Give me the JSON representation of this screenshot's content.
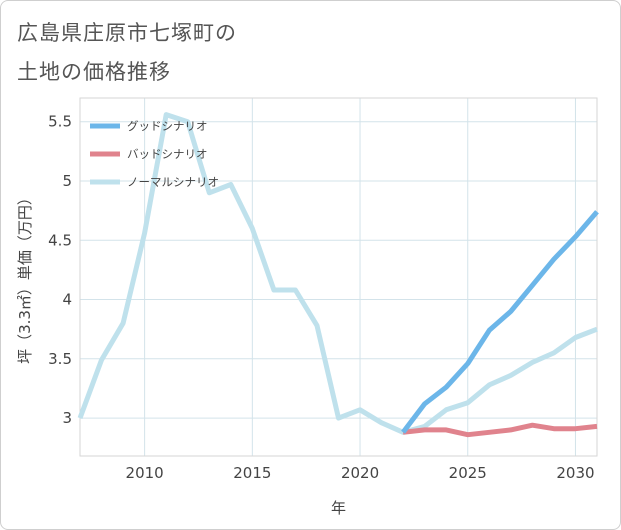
{
  "title_lines": [
    "広島県庄原市七塚町の",
    "土地の価格推移"
  ],
  "chart_data": {
    "type": "line",
    "title": "広島県庄原市七塚町の土地の価格推移",
    "xlabel": "年",
    "ylabel": "坪（3.3㎡）単価（万円）",
    "xlim": [
      2007,
      2031
    ],
    "ylim": [
      2.68,
      5.7
    ],
    "xticks": [
      2010,
      2015,
      2020,
      2025,
      2030
    ],
    "yticks": [
      3,
      3.5,
      4,
      4.5,
      5,
      5.5
    ],
    "ytick_labels": [
      "3",
      "3.5",
      "4",
      "4.5",
      "5",
      "5.5"
    ],
    "grid": true,
    "legend_position": "top-left",
    "series": [
      {
        "name": "グッドシナリオ",
        "color": "#6cb6e9",
        "x": [
          2022,
          2023,
          2024,
          2025,
          2026,
          2027,
          2028,
          2029,
          2030,
          2031
        ],
        "values": [
          2.88,
          3.12,
          3.26,
          3.46,
          3.74,
          3.9,
          4.12,
          4.34,
          4.53,
          4.74
        ]
      },
      {
        "name": "バッドシナリオ",
        "color": "#e0838d",
        "x": [
          2022,
          2023,
          2024,
          2025,
          2026,
          2027,
          2028,
          2029,
          2030,
          2031
        ],
        "values": [
          2.88,
          2.9,
          2.9,
          2.86,
          2.88,
          2.9,
          2.94,
          2.91,
          2.91,
          2.93
        ]
      },
      {
        "name": "ノーマルシナリオ",
        "color": "#bfe1ec",
        "x": [
          2007,
          2008,
          2009,
          2010,
          2011,
          2012,
          2013,
          2014,
          2015,
          2016,
          2017,
          2018,
          2019,
          2020,
          2021,
          2022,
          2023,
          2024,
          2025,
          2026,
          2027,
          2028,
          2029,
          2030,
          2031
        ],
        "values": [
          3.0,
          3.49,
          3.8,
          4.56,
          5.56,
          5.5,
          4.9,
          4.97,
          4.6,
          4.08,
          4.08,
          3.78,
          3.0,
          3.07,
          2.96,
          2.88,
          2.93,
          3.07,
          3.13,
          3.28,
          3.36,
          3.47,
          3.55,
          3.68,
          3.75
        ]
      }
    ]
  }
}
